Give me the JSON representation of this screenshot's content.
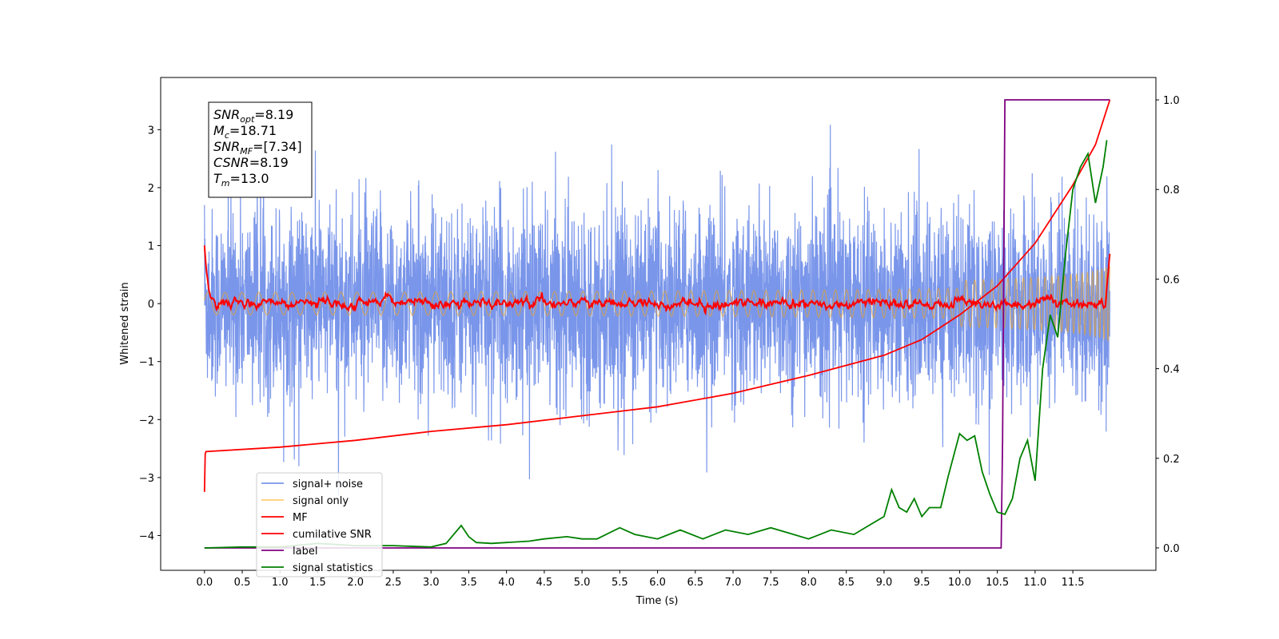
{
  "chart_data": {
    "type": "line",
    "xlabel": "Time (s)",
    "ylabel": "Whitened strain",
    "x_range": [
      -0.58,
      12.6
    ],
    "x_ticks": [
      "0.0",
      "0.5",
      "1.0",
      "1.5",
      "2.0",
      "2.5",
      "3.0",
      "3.5",
      "4.0",
      "4.5",
      "5.0",
      "5.5",
      "6.0",
      "6.5",
      "7.0",
      "7.5",
      "8.0",
      "8.5",
      "9.0",
      "9.5",
      "10.0",
      "10.5",
      "11.0",
      "11.5"
    ],
    "y_left_range": [
      -4.6,
      3.9
    ],
    "y_left_ticks": [
      "−4",
      "−3",
      "−2",
      "−1",
      "0",
      "1",
      "2",
      "3"
    ],
    "y_right_range": [
      -0.05,
      1.05
    ],
    "y_right_ticks": [
      "0.0",
      "0.2",
      "0.4",
      "0.6",
      "0.8",
      "1.0"
    ],
    "grid": false,
    "legend_position": "lower-left",
    "stats_box": [
      {
        "sym": "SNR",
        "sub": "opt",
        "value": "=8.19"
      },
      {
        "sym": "M",
        "sub": "c",
        "value": "=18.71"
      },
      {
        "sym": "SNR",
        "sub": "MF",
        "value": "=[7.34]"
      },
      {
        "sym": "CSNR",
        "sub": "",
        "value": "=8.19"
      },
      {
        "sym": "T",
        "sub": "m",
        "value": "=13.0"
      }
    ],
    "series": [
      {
        "name": "signal+ noise",
        "color": "#4169e1",
        "axis": "left",
        "kind": "noise",
        "x_start": 0.0,
        "x_end": 11.99,
        "amplitude": 1.3,
        "note_range": [
          -3.3,
          3.6
        ]
      },
      {
        "name": "signal only",
        "color": "#ffa500",
        "axis": "left",
        "kind": "chirp",
        "x_start": 0.0,
        "x_end": 11.99
      },
      {
        "name": "MF",
        "color": "#ff0000",
        "axis": "left",
        "kind": "mf",
        "x_start": 0.0,
        "x_end": 11.99,
        "start_value": 1.0,
        "end_value": 0.95
      },
      {
        "name": "cumilative SNR",
        "color": "#ff0000",
        "axis": "right",
        "x": [
          0.0,
          0.01,
          0.02,
          1.0,
          2.0,
          3.0,
          4.0,
          5.0,
          6.0,
          7.0,
          8.0,
          9.0,
          9.5,
          10.0,
          10.5,
          11.0,
          11.5,
          11.8,
          11.99
        ],
        "y": [
          0.125,
          0.21,
          0.215,
          0.225,
          0.24,
          0.26,
          0.275,
          0.295,
          0.315,
          0.345,
          0.385,
          0.43,
          0.465,
          0.52,
          0.585,
          0.68,
          0.81,
          0.9,
          1.0
        ]
      },
      {
        "name": "label",
        "color": "#800080",
        "axis": "right",
        "x": [
          0.0,
          10.55,
          10.57,
          10.6,
          11.99
        ],
        "y": [
          0.0,
          0.0,
          0.24,
          1.0,
          1.0
        ]
      },
      {
        "name": "signal statistics",
        "color": "#008000",
        "axis": "right",
        "x": [
          0.0,
          0.5,
          1.0,
          1.5,
          2.0,
          2.5,
          3.0,
          3.2,
          3.4,
          3.5,
          3.6,
          3.8,
          4.0,
          4.3,
          4.5,
          4.8,
          5.0,
          5.2,
          5.5,
          5.7,
          6.0,
          6.3,
          6.6,
          6.9,
          7.2,
          7.5,
          7.7,
          8.0,
          8.3,
          8.6,
          8.8,
          9.0,
          9.1,
          9.2,
          9.3,
          9.4,
          9.5,
          9.6,
          9.75,
          9.85,
          10.0,
          10.1,
          10.2,
          10.3,
          10.4,
          10.5,
          10.6,
          10.7,
          10.8,
          10.9,
          11.0,
          11.1,
          11.2,
          11.3,
          11.4,
          11.5,
          11.6,
          11.7,
          11.8,
          11.9,
          11.95
        ],
        "y": [
          0.0,
          0.002,
          0.002,
          0.01,
          0.005,
          0.005,
          0.002,
          0.01,
          0.05,
          0.025,
          0.012,
          0.01,
          0.012,
          0.015,
          0.02,
          0.025,
          0.02,
          0.02,
          0.045,
          0.03,
          0.02,
          0.04,
          0.02,
          0.04,
          0.03,
          0.045,
          0.035,
          0.02,
          0.04,
          0.03,
          0.05,
          0.07,
          0.13,
          0.09,
          0.08,
          0.11,
          0.07,
          0.09,
          0.09,
          0.16,
          0.255,
          0.24,
          0.25,
          0.17,
          0.12,
          0.08,
          0.075,
          0.11,
          0.2,
          0.24,
          0.15,
          0.4,
          0.52,
          0.47,
          0.65,
          0.8,
          0.85,
          0.88,
          0.77,
          0.85,
          0.91
        ]
      }
    ]
  }
}
